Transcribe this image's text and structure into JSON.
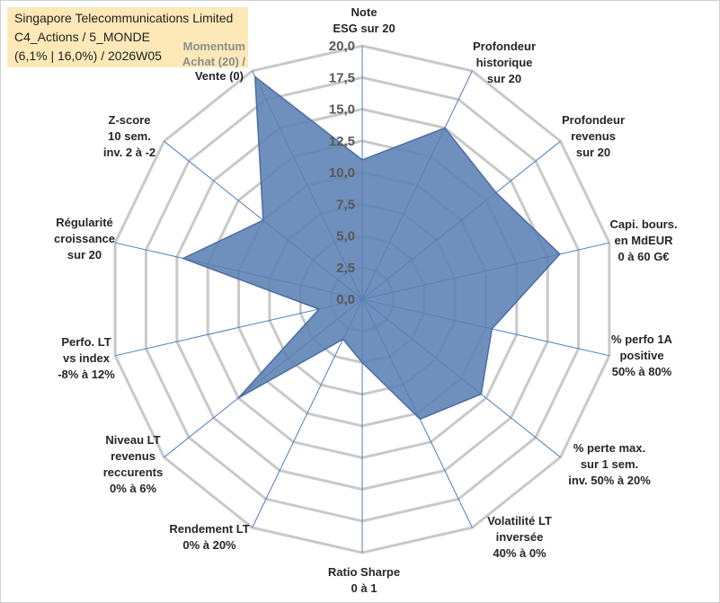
{
  "title_box": {
    "line1": "Singapore Telecommunications Limited",
    "line2": "C4_Actions / 5_MONDE",
    "line3": "(6,1% | 16,0%) / 2026W05"
  },
  "legend": {
    "line1": "Momentum",
    "line2": "Achat (20) /",
    "line3": "Vente (0)"
  },
  "chart_data": {
    "type": "radar",
    "range": [
      0,
      20
    ],
    "tick_step": 2.5,
    "tick_labels": [
      "0,0",
      "2,5",
      "5,0",
      "7,5",
      "10,0",
      "12,5",
      "15,0",
      "17,5",
      "20,0"
    ],
    "grid": true,
    "axes": [
      {
        "label_lines": [
          "Note",
          "ESG sur 20"
        ],
        "value": 11.0
      },
      {
        "label_lines": [
          "Profondeur",
          "historique",
          "sur 20"
        ],
        "value": 15.0
      },
      {
        "label_lines": [
          "Profondeur",
          "revenus",
          "sur 20"
        ],
        "value": 13.5
      },
      {
        "label_lines": [
          "Capi. bours.",
          "en MdEUR",
          "0 à 60 G€"
        ],
        "value": 16.0
      },
      {
        "label_lines": [
          "% perfo 1A",
          "positive",
          "50% à 80%"
        ],
        "value": 10.5
      },
      {
        "label_lines": [
          "% perte max.",
          "sur 1 sem.",
          "inv. 50% à 20%"
        ],
        "value": 12.0
      },
      {
        "label_lines": [
          "Volatilité LT",
          "inversée",
          "40% à 0%"
        ],
        "value": 10.5
      },
      {
        "label_lines": [
          "Ratio Sharpe",
          "0 à 1"
        ],
        "value": 5.0
      },
      {
        "label_lines": [
          "Rendement LT",
          "0% à 20%"
        ],
        "value": 3.5
      },
      {
        "label_lines": [
          "Niveau LT",
          "revenus",
          "reccurents",
          "0% à 6%"
        ],
        "value": 12.5
      },
      {
        "label_lines": [
          "Perfo. LT",
          "vs index",
          "-8% à 12%"
        ],
        "value": 3.5
      },
      {
        "label_lines": [
          "Régularité",
          "croissance",
          "sur 20"
        ],
        "value": 14.5
      },
      {
        "label_lines": [
          "Z-score",
          "10 sem.",
          "inv. 2 à -2"
        ],
        "value": 10.0
      },
      {
        "label_lines": [
          "Momentum",
          "Achat (20) /",
          "Vente (0)"
        ],
        "value": 19.5
      }
    ],
    "series_color": "#5b7fb3",
    "grid_color": "#c9c9c9",
    "spoke_color": "#4a7fc1"
  }
}
